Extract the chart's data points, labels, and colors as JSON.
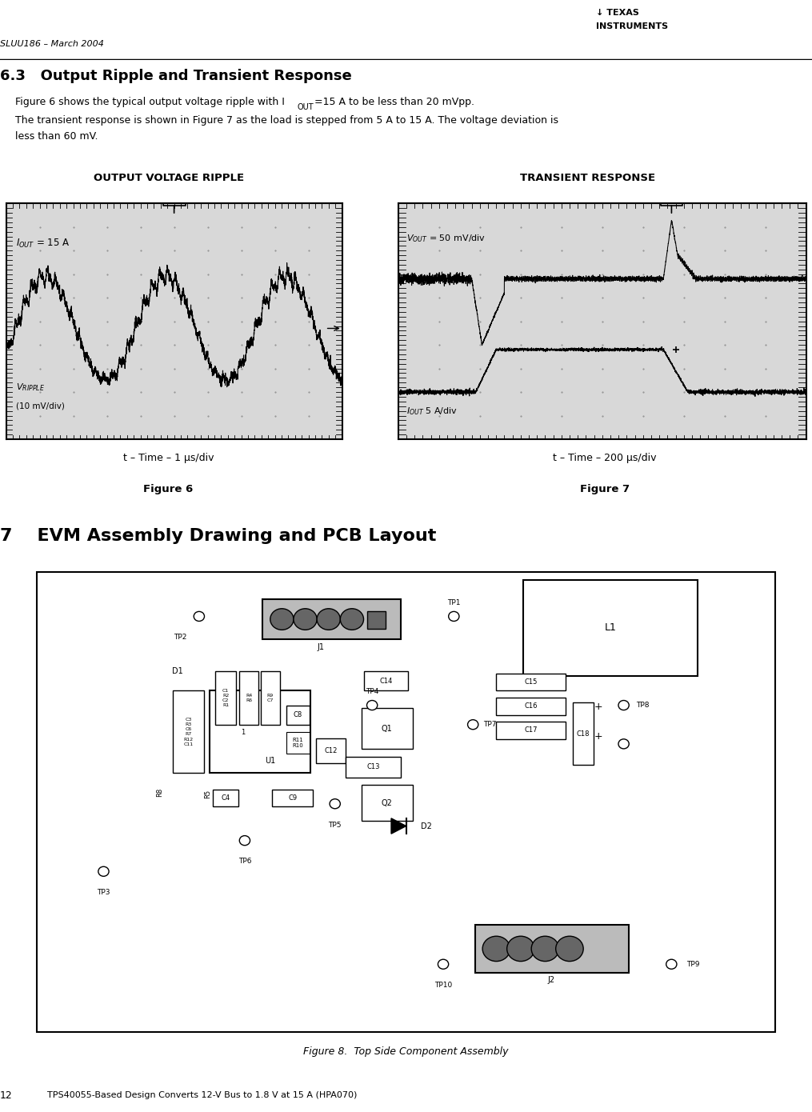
{
  "header_doc": "SLUU186 – March 2004",
  "section63_title": "6.3   Output Ripple and Transient Response",
  "para1a": "Figure 6 shows the typical output voltage ripple with I",
  "para1b": "OUT",
  "para1c": "=15 A to be less than 20 mVpp.",
  "para2": "The transient response is shown in Figure 7 as the load is stepped from 5 A to 15 A. The voltage deviation is less than 60 mV.",
  "fig6_title": "OUTPUT VOLTAGE RIPPLE",
  "fig7_title": "TRANSIENT RESPONSE",
  "fig6_xlabel": "t – Time – 1 μs/div",
  "fig7_xlabel": "t – Time – 200 μs/div",
  "fig6_caption": "Figure 6",
  "fig7_caption": "Figure 7",
  "section7_title": "7    EVM Assembly Drawing and PCB Layout",
  "fig8_caption": "Figure 8.  Top Side Component Assembly",
  "footer_page": "12",
  "footer_text": "TPS40055-Based Design Converts 12-V Bus to 1.8 V at 15 A (HPA070)",
  "osc_bg": "#d8d8d8",
  "osc_grid": "#aaaaaa",
  "white": "#ffffff",
  "black": "#000000"
}
